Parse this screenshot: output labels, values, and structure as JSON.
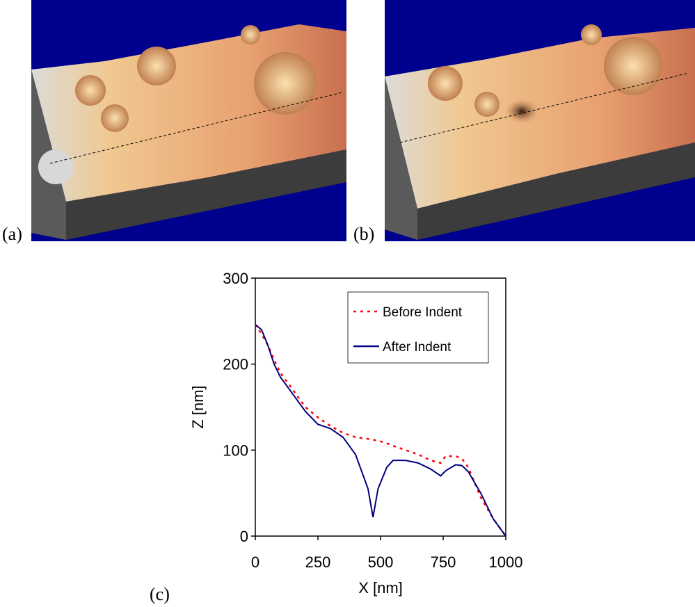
{
  "panel_labels": [
    "(a)",
    "(b)",
    "(c)"
  ],
  "chart_data": {
    "type": "line",
    "xlabel": "X [nm]",
    "ylabel": "Z [nm]",
    "x": [
      0,
      25,
      50,
      75,
      100,
      150,
      200,
      250,
      300,
      350,
      400,
      450,
      470,
      490,
      525,
      550,
      600,
      650,
      700,
      740,
      760,
      800,
      825,
      850,
      900,
      950,
      1000
    ],
    "series": [
      {
        "name": "Before Indent",
        "color": "#ff0000",
        "linestyle": "dotted",
        "values": [
          246,
          235,
          222,
          205,
          190,
          170,
          150,
          138,
          128,
          120,
          115,
          113,
          112,
          111,
          108,
          105,
          100,
          95,
          88,
          85,
          93,
          93,
          90,
          80,
          45,
          20,
          0
        ]
      },
      {
        "name": "After Indent",
        "color": "#000080",
        "linestyle": "solid",
        "values": [
          246,
          240,
          222,
          200,
          185,
          165,
          145,
          130,
          125,
          115,
          95,
          55,
          22,
          55,
          80,
          88,
          88,
          85,
          78,
          70,
          76,
          83,
          82,
          75,
          50,
          20,
          0
        ]
      }
    ],
    "xlim": [
      0,
      1000
    ],
    "xticks": [
      0,
      250,
      500,
      750,
      1000
    ],
    "ylim": [
      0,
      300
    ],
    "yticks": [
      0,
      100,
      200,
      300
    ],
    "legend": "upper right"
  }
}
